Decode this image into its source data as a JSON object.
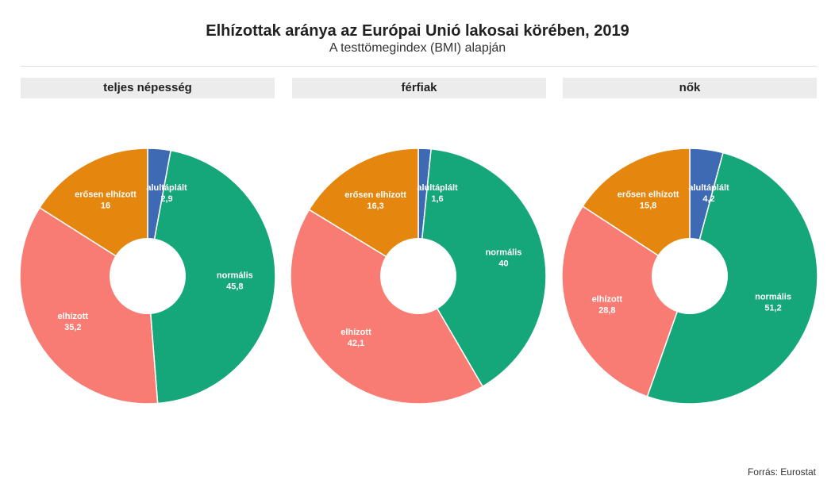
{
  "header": {
    "title": "Elhízottak aránya az Európai Unió lakosai körében, 2019",
    "subtitle": "A testtömegindex (BMI) alapján"
  },
  "panels": [
    {
      "label": "teljes népesség"
    },
    {
      "label": "férfiak"
    },
    {
      "label": "nők"
    }
  ],
  "footer": {
    "source": "Forrás: Eurostat"
  },
  "colors": {
    "alultáplált": "#3d6ab3",
    "normális": "#15a67a",
    "elhízott": "#f87c73",
    "erősen elhízott": "#e5860f"
  },
  "chart_data": [
    {
      "type": "pie",
      "donut": true,
      "title": "teljes népesség",
      "categories": [
        "alultáplált",
        "normális",
        "elhízott",
        "erősen elhízott"
      ],
      "values": [
        2.9,
        45.8,
        35.2,
        16
      ],
      "value_labels": [
        "2,9",
        "45,8",
        "35,2",
        "16"
      ]
    },
    {
      "type": "pie",
      "donut": true,
      "title": "férfiak",
      "categories": [
        "alultáplált",
        "normális",
        "elhízott",
        "erősen elhízott"
      ],
      "values": [
        1.6,
        40,
        42.1,
        16.3
      ],
      "value_labels": [
        "1,6",
        "40",
        "42,1",
        "16,3"
      ]
    },
    {
      "type": "pie",
      "donut": true,
      "title": "nők",
      "categories": [
        "alultáplált",
        "normális",
        "elhízott",
        "erősen elhízott"
      ],
      "values": [
        4.2,
        51.2,
        28.8,
        15.8
      ],
      "value_labels": [
        "4,2",
        "51,2",
        "28,8",
        "15,8"
      ]
    }
  ]
}
